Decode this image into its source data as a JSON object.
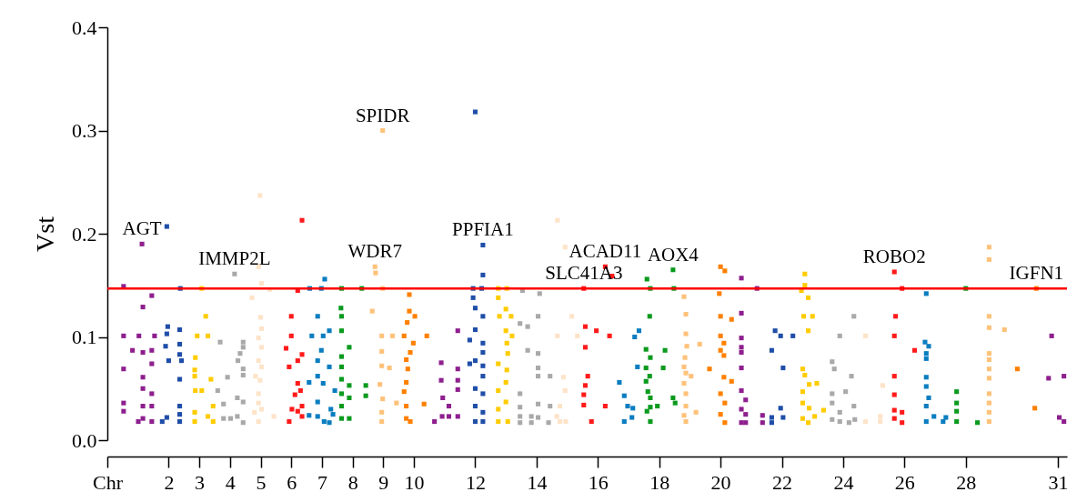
{
  "chart_data": {
    "type": "scatter",
    "ylabel": "Vst",
    "marker": "square",
    "grid": false,
    "legend": false,
    "xlim": [
      0,
      31.3
    ],
    "ylim": [
      0,
      0.4
    ],
    "yticks": [
      {
        "value": 0,
        "label": "0.0"
      },
      0.1,
      0.2,
      0.3,
      0.4
    ],
    "xticks": [
      {
        "value": 0,
        "label": "Chr"
      },
      2,
      3,
      4,
      5,
      6,
      7,
      8,
      9,
      10,
      12,
      14,
      16,
      18,
      20,
      22,
      24,
      26,
      28,
      31
    ],
    "ref_lines": [
      {
        "axis": "y",
        "value": 0.147,
        "color": "#ff0000"
      }
    ],
    "annotations": [
      {
        "text": "AGT",
        "x": 1.13,
        "y": 0.19
      },
      {
        "text": "IMMP2L",
        "x": 4.15,
        "y": 0.161
      },
      {
        "text": "SPIDR",
        "x": 8.98,
        "y": 0.3
      },
      {
        "text": "WDR7",
        "x": 8.73,
        "y": 0.168
      },
      {
        "text": "PPFIA1",
        "x": 12.25,
        "y": 0.189
      },
      {
        "text": "ACAD11",
        "x": 16.24,
        "y": 0.168
      },
      {
        "text": "SLC41A3",
        "x": 15.54,
        "y": 0.147
      },
      {
        "text": "AOX4",
        "x": 18.45,
        "y": 0.165
      },
      {
        "text": "ROBO2",
        "x": 25.67,
        "y": 0.163
      },
      {
        "text": "IGFN1",
        "x": 30.3,
        "y": 0.147
      }
    ],
    "series": [
      {
        "color": "#8e1f8e",
        "x": [
          0.53,
          0.53,
          0.53,
          0.53,
          0.53,
          0.82,
          1.03,
          1.01,
          1.13,
          1.16,
          1.16,
          1.16,
          1.16,
          1.16,
          1.16,
          1.45,
          1.45,
          1.45,
          1.45,
          1.45,
          1.45,
          1.54
        ],
        "values": [
          0.149,
          0.101,
          0.069,
          0.036,
          0.028,
          0.087,
          0.101,
          0.018,
          0.19,
          0.129,
          0.085,
          0.061,
          0.05,
          0.033,
          0.021,
          0.14,
          0.087,
          0.074,
          0.045,
          0.033,
          0.018,
          0.101
        ]
      },
      {
        "color": "#1f4ea8",
        "x": [
          1.94,
          1.97,
          1.94,
          1.9,
          2.0,
          1.79,
          1.94,
          2.38,
          2.36,
          2.36,
          2.36,
          2.42,
          2.36,
          2.36,
          2.36,
          2.36
        ],
        "values": [
          0.207,
          0.11,
          0.103,
          0.091,
          0.077,
          0.018,
          0.022,
          0.147,
          0.107,
          0.093,
          0.083,
          0.077,
          0.059,
          0.033,
          0.018,
          0.025
        ]
      },
      {
        "color": "#ffcc00",
        "x": [
          3.08,
          3.21,
          2.93,
          3.28,
          2.87,
          2.85,
          2.85,
          2.87,
          3.08,
          3.38,
          2.85,
          2.85,
          3.28,
          3.45,
          3.45
        ],
        "values": [
          0.147,
          0.12,
          0.101,
          0.101,
          0.08,
          0.068,
          0.062,
          0.048,
          0.048,
          0.059,
          0.027,
          0.018,
          0.023,
          0.033,
          0.018
        ]
      },
      {
        "color": "#a9a9a9",
        "x": [
          4.15,
          3.68,
          4.43,
          4.43,
          4.33,
          4.26,
          4.43,
          4.43,
          3.92,
          3.6,
          3.79,
          3.79,
          4.02,
          4.24,
          4.24,
          4.43,
          4.43
        ],
        "values": [
          0.161,
          0.095,
          0.095,
          0.09,
          0.084,
          0.077,
          0.069,
          0.063,
          0.061,
          0.048,
          0.035,
          0.021,
          0.021,
          0.041,
          0.023,
          0.037,
          0.017
        ]
      },
      {
        "color": "#fde3c8",
        "x": [
          4.98,
          4.93,
          5.03,
          5.3,
          4.72,
          5.0,
          5.03,
          4.93,
          5.03,
          4.93,
          5.03,
          4.83,
          4.98,
          4.93,
          4.93,
          4.8,
          5.03,
          4.93,
          5.43
        ],
        "values": [
          0.237,
          0.168,
          0.152,
          0.146,
          0.138,
          0.119,
          0.108,
          0.099,
          0.09,
          0.077,
          0.071,
          0.062,
          0.058,
          0.045,
          0.036,
          0.027,
          0.03,
          0.018,
          0.023
        ]
      },
      {
        "color": "#ff1a1a",
        "x": [
          6.35,
          6.21,
          6.0,
          6.0,
          5.83,
          6.35,
          6.21,
          5.93,
          6.21,
          6.3,
          6.12,
          6.21,
          6.02,
          6.35,
          5.93,
          6.35
        ],
        "values": [
          0.213,
          0.145,
          0.12,
          0.101,
          0.089,
          0.083,
          0.077,
          0.071,
          0.055,
          0.048,
          0.044,
          0.028,
          0.03,
          0.023,
          0.018,
          0.033
        ]
      },
      {
        "color": "#0a7dc0",
        "x": [
          6.6,
          6.98,
          7.09,
          6.86,
          6.67,
          7.04,
          7.24,
          6.98,
          6.86,
          7.24,
          6.86,
          6.58,
          7.04,
          7.42,
          6.86,
          6.58,
          6.86,
          7.07,
          7.24,
          7.36,
          7.29
        ],
        "values": [
          0.147,
          0.147,
          0.156,
          0.12,
          0.101,
          0.101,
          0.106,
          0.087,
          0.077,
          0.071,
          0.062,
          0.056,
          0.055,
          0.048,
          0.037,
          0.024,
          0.023,
          0.018,
          0.017,
          0.025,
          0.03
        ]
      },
      {
        "color": "#0a9a1e",
        "x": [
          7.64,
          8.3,
          7.62,
          7.64,
          7.64,
          7.89,
          7.64,
          7.64,
          7.64,
          7.89,
          8.43,
          8.43,
          7.64,
          7.89,
          7.64,
          7.64,
          7.89
        ],
        "values": [
          0.147,
          0.147,
          0.128,
          0.12,
          0.106,
          0.09,
          0.081,
          0.071,
          0.059,
          0.053,
          0.053,
          0.043,
          0.045,
          0.041,
          0.033,
          0.021,
          0.021
        ]
      },
      {
        "color": "#ffc27a",
        "x": [
          8.98,
          8.73,
          8.75,
          8.98,
          8.64,
          8.95,
          9.3,
          8.95,
          8.95,
          9.2,
          8.89,
          8.98,
          9.43,
          8.95,
          8.95
        ],
        "values": [
          0.3,
          0.168,
          0.162,
          0.147,
          0.125,
          0.101,
          0.101,
          0.086,
          0.072,
          0.07,
          0.054,
          0.04,
          0.036,
          0.027,
          0.018
        ]
      },
      {
        "color": "#ff8000",
        "x": [
          9.85,
          9.85,
          10.03,
          9.78,
          9.68,
          10.42,
          9.98,
          9.88,
          9.75,
          9.8,
          9.75,
          9.68,
          10.33,
          9.75,
          9.75,
          9.88
        ],
        "values": [
          0.141,
          0.125,
          0.12,
          0.114,
          0.101,
          0.101,
          0.094,
          0.085,
          0.078,
          0.069,
          0.056,
          0.047,
          0.035,
          0.033,
          0.021,
          0.018
        ]
      },
      {
        "color": "#8e1f8e",
        "x": [
          11.43,
          10.89,
          11.43,
          10.89,
          11.43,
          11.43,
          10.94,
          11.14,
          10.67,
          10.92,
          11.14,
          11.43
        ],
        "values": [
          0.106,
          0.075,
          0.069,
          0.058,
          0.058,
          0.049,
          0.041,
          0.033,
          0.018,
          0.023,
          0.023,
          0.023
        ]
      },
      {
        "color": "#1f4ea8",
        "x": [
          12.0,
          12.25,
          12.25,
          11.93,
          12.21,
          11.93,
          12.0,
          12.25,
          12.0,
          11.82,
          12.25,
          12.25,
          12.0,
          11.82,
          12.25,
          12.25,
          12.0,
          12.25,
          12.0,
          12.25,
          12.0,
          12.25
        ],
        "values": [
          0.318,
          0.189,
          0.16,
          0.147,
          0.147,
          0.138,
          0.128,
          0.12,
          0.107,
          0.097,
          0.094,
          0.085,
          0.077,
          0.074,
          0.072,
          0.062,
          0.05,
          0.045,
          0.033,
          0.027,
          0.018,
          0.018
        ]
      },
      {
        "color": "#ffcc00",
        "x": [
          12.75,
          13.03,
          12.75,
          13.0,
          12.79,
          13.17,
          13.0,
          13.2,
          13.03,
          13.06,
          12.75,
          13.03,
          13.0,
          12.75,
          13.0,
          12.75,
          12.75,
          13.06
        ],
        "values": [
          0.147,
          0.147,
          0.138,
          0.127,
          0.12,
          0.12,
          0.106,
          0.101,
          0.094,
          0.084,
          0.074,
          0.068,
          0.056,
          0.048,
          0.037,
          0.03,
          0.018,
          0.018
        ]
      },
      {
        "color": "#a9a9a9",
        "x": [
          13.54,
          14.1,
          14.05,
          13.46,
          13.71,
          13.71,
          14.05,
          14.05,
          14.05,
          14.44,
          13.46,
          14.05,
          14.44,
          13.46,
          13.46,
          13.83,
          14.05,
          13.46,
          13.83,
          14.39
        ],
        "values": [
          0.145,
          0.142,
          0.12,
          0.113,
          0.11,
          0.087,
          0.084,
          0.07,
          0.062,
          0.062,
          0.045,
          0.035,
          0.033,
          0.032,
          0.023,
          0.023,
          0.022,
          0.017,
          0.017,
          0.017
        ]
      },
      {
        "color": "#fde3c8",
        "x": [
          14.68,
          14.93,
          15.15,
          14.68,
          15.33,
          14.88,
          14.93,
          14.76,
          14.66,
          14.76,
          14.95
        ],
        "values": [
          0.213,
          0.187,
          0.12,
          0.101,
          0.101,
          0.061,
          0.048,
          0.033,
          0.023,
          0.018,
          0.018
        ]
      },
      {
        "color": "#ff1a1a",
        "x": [
          15.54,
          16.46,
          16.24,
          15.59,
          15.95,
          16.38,
          15.59,
          15.67,
          15.59,
          15.54,
          15.54,
          16.24,
          15.79
        ],
        "values": [
          0.147,
          0.159,
          0.168,
          0.11,
          0.106,
          0.101,
          0.09,
          0.062,
          0.053,
          0.044,
          0.034,
          0.033,
          0.018
        ]
      },
      {
        "color": "#0a7dc0",
        "x": [
          16.7,
          16.86,
          16.97,
          17.14,
          17.11,
          16.86,
          17.2,
          17.34,
          17.29
        ],
        "values": [
          0.056,
          0.043,
          0.033,
          0.031,
          0.022,
          0.018,
          0.1,
          0.106,
          0.071
        ]
      },
      {
        "color": "#0a9a1e",
        "x": [
          18.45,
          17.6,
          17.71,
          18.48,
          17.69,
          17.57,
          18.19,
          17.71,
          17.57,
          18.13,
          17.69,
          17.57,
          17.63,
          17.71,
          18.45,
          17.94,
          18.52,
          17.6,
          17.71,
          17.71
        ],
        "values": [
          0.165,
          0.156,
          0.147,
          0.147,
          0.12,
          0.088,
          0.087,
          0.08,
          0.07,
          0.07,
          0.062,
          0.057,
          0.047,
          0.041,
          0.041,
          0.033,
          0.036,
          0.028,
          0.032,
          0.018
        ]
      },
      {
        "color": "#ffc27a",
        "x": [
          18.81,
          18.87,
          18.87,
          19.32,
          18.9,
          18.84,
          18.81,
          18.87,
          19.04,
          18.81,
          18.87,
          19.2,
          18.87,
          18.81,
          18.87
        ],
        "values": [
          0.139,
          0.122,
          0.103,
          0.093,
          0.091,
          0.08,
          0.071,
          0.065,
          0.062,
          0.055,
          0.045,
          0.027,
          0.033,
          0.024,
          0.018
        ]
      },
      {
        "color": "#ff8000",
        "x": [
          20.0,
          20.14,
          19.96,
          20.0,
          20.36,
          19.64,
          20.0,
          20.11,
          20.0,
          20.11,
          20.11,
          20.36,
          20.0,
          20.14,
          20.0,
          20.14
        ],
        "values": [
          0.168,
          0.164,
          0.142,
          0.12,
          0.117,
          0.069,
          0.101,
          0.094,
          0.087,
          0.082,
          0.061,
          0.057,
          0.045,
          0.036,
          0.025,
          0.017
        ]
      },
      {
        "color": "#8e1f8e",
        "x": [
          20.68,
          20.68,
          20.68,
          20.68,
          20.68,
          20.68,
          20.68,
          20.82,
          20.68,
          20.82,
          20.68,
          20.82,
          21.19,
          21.37,
          21.37
        ],
        "values": [
          0.157,
          0.123,
          0.099,
          0.09,
          0.085,
          0.07,
          0.048,
          0.039,
          0.03,
          0.025,
          0.017,
          0.017,
          0.147,
          0.024,
          0.017
        ]
      },
      {
        "color": "#1f4ea8",
        "x": [
          21.78,
          21.96,
          22.36,
          21.67,
          22.04,
          21.96,
          22.04,
          21.67,
          21.67
        ],
        "values": [
          0.106,
          0.101,
          0.101,
          0.087,
          0.07,
          0.031,
          0.022,
          0.022,
          0.017
        ]
      },
      {
        "color": "#ffcc00",
        "x": [
          22.75,
          22.75,
          22.64,
          22.86,
          22.71,
          23.0,
          22.86,
          22.68,
          22.75,
          22.89,
          23.14,
          22.68,
          22.68,
          22.89,
          23.36,
          23.07,
          22.68,
          22.86
        ],
        "values": [
          0.161,
          0.15,
          0.145,
          0.138,
          0.12,
          0.12,
          0.106,
          0.069,
          0.063,
          0.054,
          0.055,
          0.047,
          0.036,
          0.031,
          0.029,
          0.023,
          0.021,
          0.017
        ]
      },
      {
        "color": "#a9a9a9",
        "x": [
          24.35,
          23.89,
          23.64,
          23.71,
          24.27,
          24.08,
          23.64,
          23.64,
          24.35,
          23.89,
          24.38,
          23.64,
          24.19,
          23.89
        ],
        "values": [
          0.12,
          0.101,
          0.076,
          0.069,
          0.062,
          0.047,
          0.045,
          0.036,
          0.033,
          0.027,
          0.02,
          0.02,
          0.017,
          0.018
        ]
      },
      {
        "color": "#fde3c8",
        "x": [
          24.73,
          25.29,
          25.21,
          25.21,
          24.73
        ],
        "values": [
          0.101,
          0.053,
          0.023,
          0.018,
          0.018
        ]
      },
      {
        "color": "#ff1a1a",
        "x": [
          25.92,
          25.71,
          25.67,
          26.33,
          25.67,
          25.67,
          25.67,
          25.92,
          25.67,
          25.92,
          25.67
        ],
        "values": [
          0.147,
          0.12,
          0.101,
          0.087,
          0.062,
          0.044,
          0.029,
          0.027,
          0.021,
          0.017,
          0.163
        ]
      },
      {
        "color": "#0a7dc0",
        "x": [
          26.71,
          26.67,
          26.79,
          26.71,
          26.71,
          26.71,
          26.71,
          26.79,
          26.71,
          26.96,
          26.71,
          27.35,
          27.26
        ],
        "values": [
          0.142,
          0.095,
          0.091,
          0.084,
          0.079,
          0.061,
          0.052,
          0.041,
          0.033,
          0.023,
          0.018,
          0.022,
          0.018
        ]
      },
      {
        "color": "#0a9a1e",
        "x": [
          28.0,
          27.7,
          27.7,
          27.7,
          27.7,
          28.38
        ],
        "values": [
          0.147,
          0.047,
          0.036,
          0.028,
          0.018,
          0.017
        ]
      },
      {
        "color": "#ffc27a",
        "x": [
          28.76,
          28.76,
          28.76,
          28.76,
          29.26,
          28.76,
          28.76,
          28.76,
          28.76,
          28.76,
          28.76,
          28.76,
          28.76
        ],
        "values": [
          0.187,
          0.175,
          0.12,
          0.109,
          0.107,
          0.084,
          0.078,
          0.069,
          0.06,
          0.045,
          0.036,
          0.027,
          0.018
        ]
      },
      {
        "color": "#ff8000",
        "x": [
          30.3,
          29.68,
          30.25
        ],
        "values": [
          0.147,
          0.069,
          0.031
        ]
      },
      {
        "color": "#8e1f8e",
        "x": [
          30.8,
          30.7,
          31.2,
          31.05,
          31.2
        ],
        "values": [
          0.101,
          0.06,
          0.062,
          0.022,
          0.018
        ]
      }
    ]
  }
}
